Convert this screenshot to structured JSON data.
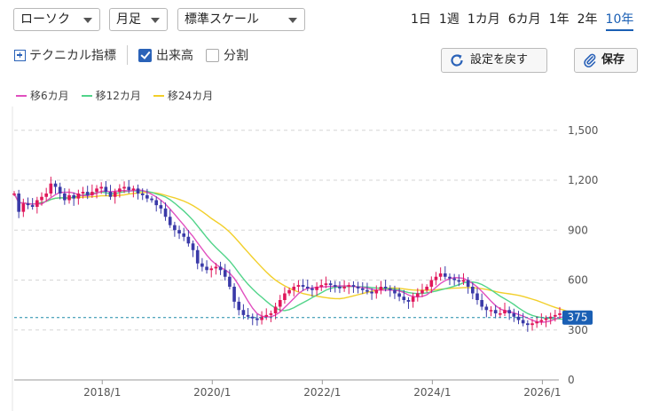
{
  "controls": {
    "chart_type": "ローソク",
    "interval": "月足",
    "scale": "標準スケール"
  },
  "periods": [
    {
      "label": "1日",
      "active": false
    },
    {
      "label": "1週",
      "active": false
    },
    {
      "label": "1カ月",
      "active": false
    },
    {
      "label": "6カ月",
      "active": false
    },
    {
      "label": "1年",
      "active": false
    },
    {
      "label": "2年",
      "active": false
    },
    {
      "label": "10年",
      "active": true
    }
  ],
  "toolbar": {
    "technical_label": "テクニカル指標",
    "volume_label": "出来高",
    "volume_checked": true,
    "split_label": "分割",
    "split_checked": false,
    "reset_label": "設定を戻す",
    "save_label": "保存"
  },
  "legend": [
    {
      "label": "移6カ月",
      "color": "#e14fbf"
    },
    {
      "label": "移12カ月",
      "color": "#52d48a"
    },
    {
      "label": "移24カ月",
      "color": "#f2cf2a"
    }
  ],
  "chart_data": {
    "type": "candlestick",
    "y_ticks": [
      "1,500",
      "1,200",
      "900",
      "600",
      "300",
      "0"
    ],
    "y_tick_values": [
      1500,
      1200,
      900,
      600,
      300,
      0
    ],
    "ylim": [
      0,
      1600
    ],
    "x_ticks": [
      "2018/1",
      "2020/1",
      "2022/1",
      "2024/1",
      "2026/1"
    ],
    "x_tick_values": [
      2018,
      2020,
      2022,
      2024,
      2026
    ],
    "xlim": [
      2016.4,
      2026.3
    ],
    "current_price_label": "375",
    "current_price": 375,
    "up_color": "#e0175b",
    "down_color": "#3a3aa8",
    "grid": true,
    "close_series": {
      "x_start": 2016.4,
      "x_step": 0.08333,
      "values": [
        1120,
        1010,
        1060,
        1050,
        1040,
        1080,
        1100,
        1120,
        1180,
        1160,
        1120,
        1080,
        1110,
        1090,
        1120,
        1130,
        1110,
        1130,
        1150,
        1160,
        1130,
        1100,
        1130,
        1150,
        1160,
        1140,
        1150,
        1120,
        1110,
        1090,
        1080,
        1050,
        1030,
        980,
        930,
        900,
        880,
        860,
        820,
        780,
        700,
        680,
        660,
        670,
        680,
        660,
        620,
        560,
        470,
        420,
        390,
        380,
        370,
        360,
        380,
        390,
        400,
        440,
        480,
        520,
        540,
        560,
        570,
        560,
        550,
        540,
        560,
        570,
        580,
        570,
        560,
        550,
        560,
        570,
        560,
        550,
        540,
        530,
        520,
        540,
        560,
        550,
        540,
        520,
        500,
        480,
        470,
        500,
        520,
        540,
        560,
        600,
        620,
        640,
        620,
        610,
        600,
        590,
        600,
        560,
        520,
        480,
        440,
        420,
        420,
        400,
        400,
        420,
        400,
        380,
        360,
        340,
        330,
        340,
        350,
        360,
        370,
        380,
        390,
        400,
        380,
        375
      ]
    }
  }
}
